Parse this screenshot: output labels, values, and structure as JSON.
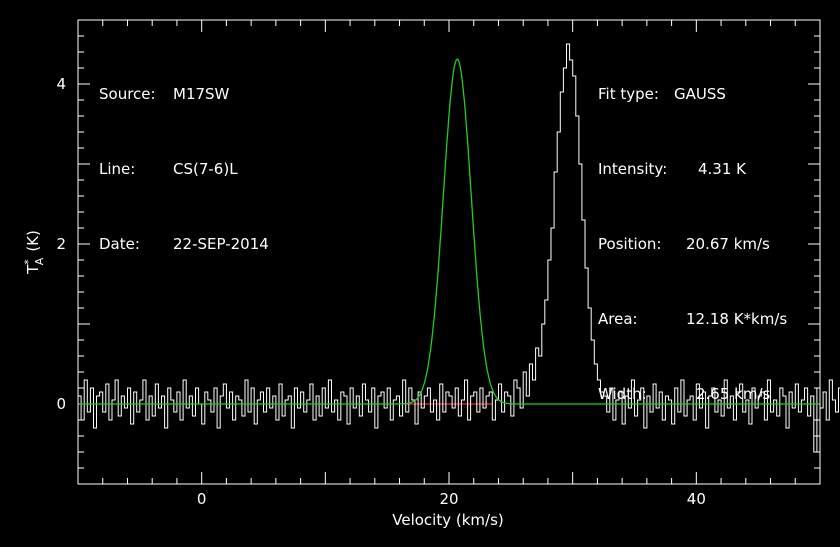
{
  "chart_data": {
    "type": "line",
    "xlabel": "Velocity (km/s)",
    "ylabel": "T",
    "ylabel_sup": "*",
    "ylabel_sub": "A",
    "ylabel_unit": "(K)",
    "xlim": [
      -10,
      50
    ],
    "ylim": [
      -1,
      4.8
    ],
    "x_ticks": [
      0,
      20,
      40
    ],
    "y_ticks": [
      0,
      2,
      4
    ],
    "info_left": [
      {
        "label": "Source:",
        "value": "M17SW"
      },
      {
        "label": "Line:",
        "value": "CS(7-6)L"
      },
      {
        "label": "Date:",
        "value": "22-SEP-2014"
      }
    ],
    "info_right": [
      {
        "label": "Fit type:",
        "value": "GAUSS"
      },
      {
        "label": "Intensity:",
        "value": "4.31 K"
      },
      {
        "label": "Position:",
        "value": "20.67 km/s"
      },
      {
        "label": "Area:",
        "value": "12.18 K*km/s"
      },
      {
        "label": "Width:",
        "value": "2.65 km/s"
      }
    ],
    "fit": {
      "amplitude": 4.31,
      "center": 20.67,
      "fwhm": 2.65
    },
    "baseline": {
      "x_start": 16.5,
      "x_end": 23.5,
      "y": 0
    },
    "series": [
      {
        "kind": "spectrum",
        "x_start": -10,
        "x_step": 0.25,
        "values": [
          0.1,
          -0.2,
          0.3,
          -0.1,
          0.2,
          -0.3,
          0.1,
          0.15,
          -0.1,
          0.25,
          -0.2,
          0.05,
          0.3,
          -0.15,
          0.1,
          -0.05,
          0.2,
          -0.25,
          0.15,
          -0.1,
          0.05,
          0.3,
          -0.2,
          0.1,
          -0.15,
          0.25,
          -0.05,
          0.1,
          -0.3,
          0.2,
          0.05,
          -0.1,
          0.15,
          -0.2,
          0.3,
          -0.05,
          0.1,
          -0.15,
          0.2,
          0.0,
          -0.25,
          0.15,
          0.05,
          -0.1,
          0.2,
          -0.3,
          0.1,
          0.25,
          -0.05,
          0.15,
          -0.2,
          0.1,
          0.05,
          -0.15,
          0.3,
          -0.1,
          0.2,
          -0.25,
          0.05,
          0.15,
          -0.1,
          0.2,
          -0.05,
          0.1,
          -0.2,
          0.25,
          -0.15,
          0.05,
          0.1,
          -0.3,
          0.2,
          -0.05,
          0.15,
          -0.1,
          0.05,
          0.25,
          -0.2,
          0.1,
          -0.15,
          0.2,
          -0.05,
          0.3,
          -0.1,
          0.05,
          -0.2,
          0.15,
          0.1,
          -0.25,
          0.2,
          -0.05,
          0.1,
          -0.15,
          0.25,
          0.05,
          -0.1,
          0.2,
          -0.3,
          0.1,
          0.15,
          -0.05,
          0.2,
          -0.2,
          0.05,
          0.1,
          -0.15,
          0.3,
          -0.1,
          0.2,
          0.05,
          -0.25,
          0.15,
          -0.05,
          0.1,
          0.2,
          -0.1,
          0.05,
          -0.2,
          0.25,
          -0.1,
          0.15,
          0.1,
          -0.05,
          0.2,
          -0.15,
          0.05,
          0.3,
          -0.2,
          0.1,
          0.15,
          -0.1,
          0.2,
          -0.05,
          0.1,
          0.15,
          -0.2,
          0.05,
          0.25,
          -0.1,
          0.15,
          0.1,
          -0.15,
          0.3,
          0.2,
          -0.05,
          0.4,
          0.1,
          0.5,
          0.3,
          0.7,
          0.6,
          1.0,
          1.3,
          1.8,
          2.2,
          2.9,
          3.4,
          3.9,
          4.2,
          4.5,
          4.3,
          4.1,
          3.6,
          3.0,
          2.3,
          1.7,
          1.2,
          0.8,
          0.5,
          0.3,
          0.15,
          0.1,
          -0.1,
          0.2,
          -0.2,
          0.05,
          0.15,
          -0.25,
          0.1,
          -0.05,
          0.3,
          -0.15,
          0.05,
          0.2,
          -0.3,
          0.1,
          -0.1,
          0.25,
          -0.05,
          0.15,
          -0.2,
          0.1,
          0.05,
          -0.25,
          0.2,
          -0.1,
          0.3,
          -0.15,
          0.05,
          0.1,
          -0.2,
          0.25,
          -0.05,
          0.15,
          -0.3,
          0.1,
          0.2,
          -0.1,
          0.05,
          -0.15,
          0.3,
          -0.05,
          0.1,
          -0.2,
          0.15,
          0.25,
          -0.1,
          0.05,
          -0.25,
          0.2,
          -0.05,
          0.1,
          0.15,
          -0.2,
          0.3,
          -0.1,
          0.05,
          -0.15,
          0.2,
          0.1,
          -0.3,
          0.15,
          -0.05,
          0.25,
          -0.1,
          0.05,
          0.2,
          -0.15,
          0.1,
          -0.6,
          0.2,
          -0.05,
          0.15,
          -0.2,
          0.3,
          0.05,
          -0.1,
          0.2,
          -0.25,
          0.1,
          0.15,
          -0.05,
          0.2,
          -0.15,
          0.05,
          0.25,
          -0.1,
          0.1,
          -0.2,
          0.15,
          0.3,
          -0.05,
          0.1,
          -0.15,
          0.2,
          -0.1,
          0.05,
          0.25,
          -0.2,
          0.1,
          0.15,
          -0.05,
          0.3,
          -0.25,
          0.1,
          0.2
        ]
      }
    ]
  }
}
